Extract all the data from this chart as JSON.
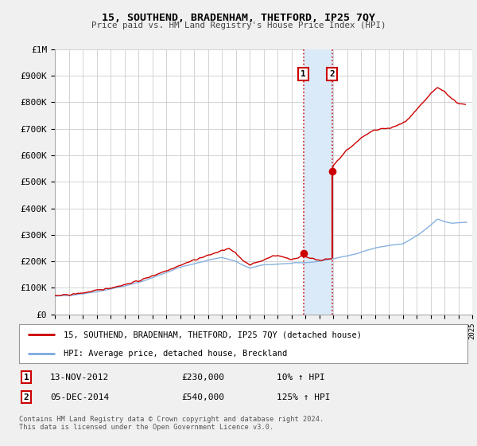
{
  "title": "15, SOUTHEND, BRADENHAM, THETFORD, IP25 7QY",
  "subtitle": "Price paid vs. HM Land Registry's House Price Index (HPI)",
  "legend_line1": "15, SOUTHEND, BRADENHAM, THETFORD, IP25 7QY (detached house)",
  "legend_line2": "HPI: Average price, detached house, Breckland",
  "footnote1": "Contains HM Land Registry data © Crown copyright and database right 2024.",
  "footnote2": "This data is licensed under the Open Government Licence v3.0.",
  "transaction1_date": "13-NOV-2012",
  "transaction1_price": "£230,000",
  "transaction1_hpi": "10% ↑ HPI",
  "transaction2_date": "05-DEC-2014",
  "transaction2_price": "£540,000",
  "transaction2_hpi": "125% ↑ HPI",
  "transaction1_year": 2012.87,
  "transaction1_value": 230000,
  "transaction2_year": 2014.92,
  "transaction2_value": 540000,
  "price_color": "#cc0000",
  "hpi_color": "#7aaadd",
  "background_color": "#f0f0f0",
  "plot_bg_color": "#ffffff",
  "grid_color": "#cccccc",
  "highlight_color": "#daeaf8",
  "xlim_min": 1995,
  "xlim_max": 2025,
  "ylim_min": 0,
  "ylim_max": 1000000,
  "ytick_values": [
    0,
    100000,
    200000,
    300000,
    400000,
    500000,
    600000,
    700000,
    800000,
    900000,
    1000000
  ],
  "ytick_labels": [
    "£0",
    "£100K",
    "£200K",
    "£300K",
    "£400K",
    "£500K",
    "£600K",
    "£700K",
    "£800K",
    "£900K",
    "£1M"
  ]
}
